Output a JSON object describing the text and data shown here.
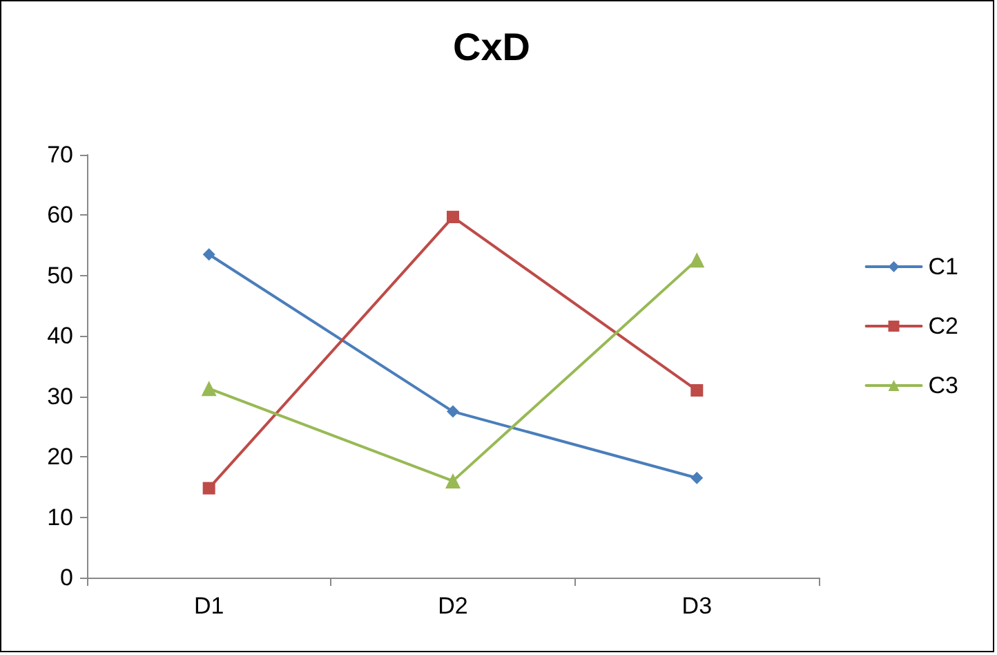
{
  "chart_data": {
    "type": "line",
    "title": "CxD",
    "categories": [
      "D1",
      "D2",
      "D3"
    ],
    "series": [
      {
        "name": "C1",
        "color": "#4a7ebb",
        "marker": "diamond",
        "values": [
          53.5,
          27.5,
          16.5
        ]
      },
      {
        "name": "C2",
        "color": "#be4b48",
        "marker": "square",
        "values": [
          14.8,
          59.7,
          31
        ]
      },
      {
        "name": "C3",
        "color": "#98b954",
        "marker": "triangle",
        "values": [
          31.3,
          16,
          52.6
        ]
      }
    ],
    "ylim": [
      0,
      70
    ],
    "yticks": [
      0,
      10,
      20,
      30,
      40,
      50,
      60,
      70
    ],
    "grid": false,
    "legend": "right",
    "line_style": "solid"
  }
}
